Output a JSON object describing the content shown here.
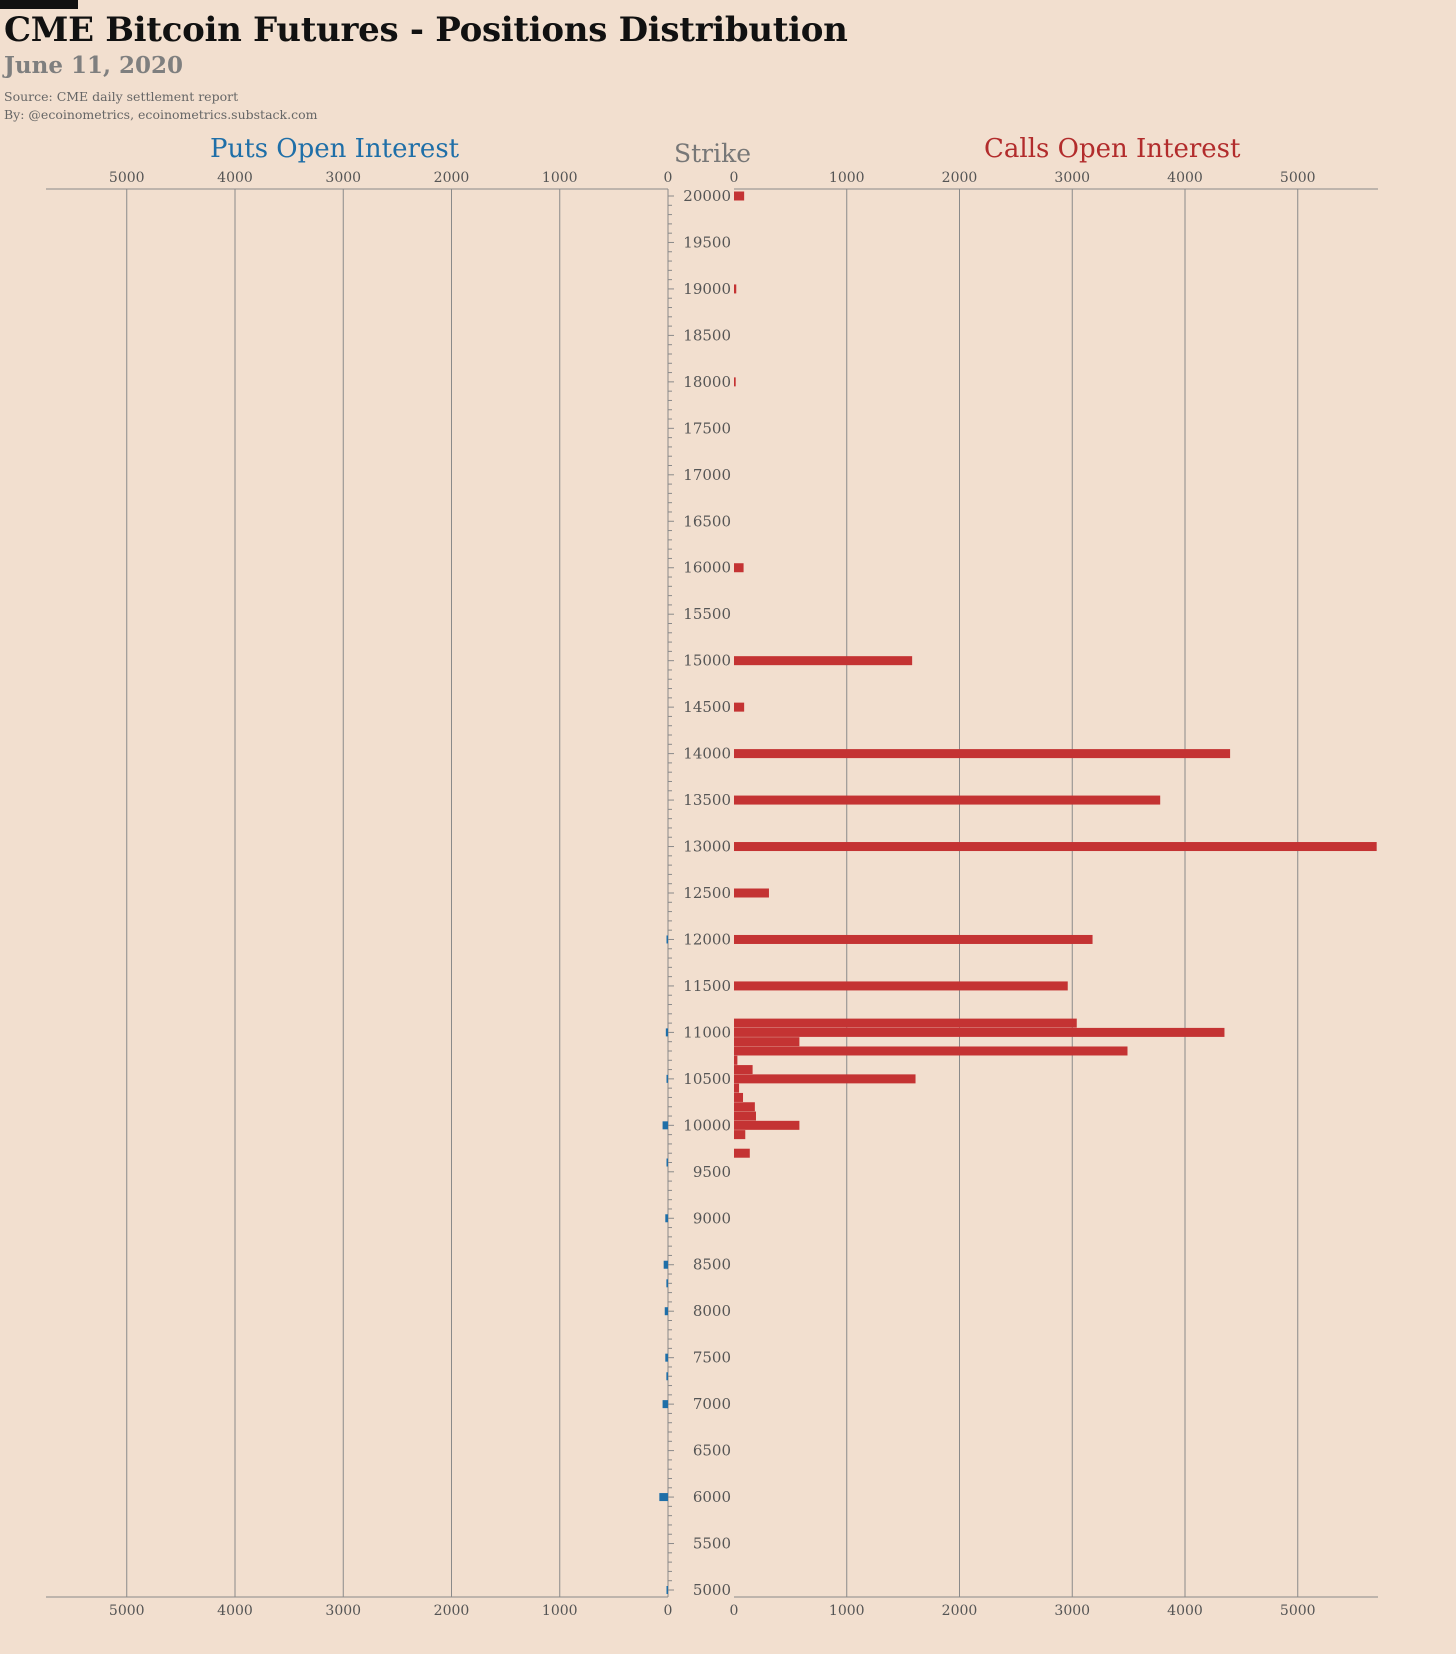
{
  "header": {
    "title": "CME Bitcoin Futures - Positions Distribution",
    "date": "June 11, 2020",
    "source": "Source: CME daily settlement report",
    "byline": "By: @ecoinometrics, ecoinometrics.substack.com"
  },
  "panels": {
    "puts_title": "Puts Open Interest",
    "calls_title": "Calls Open Interest",
    "strike_title": "Strike"
  },
  "colors": {
    "background": "#f2dfcf",
    "puts": "#1f6fa8",
    "calls": "#c43333",
    "grid": "#8a8a8a",
    "text": "#555555"
  },
  "chart_data": {
    "type": "bar",
    "orientation": "horizontal-butterfly",
    "strike_axis": {
      "min": 5000,
      "max": 20000,
      "label_step": 500,
      "minor_step": 100
    },
    "oi_axis": {
      "ticks": [
        0,
        1000,
        2000,
        3000,
        4000,
        5000
      ],
      "max": 5700
    },
    "grid": true,
    "calls": [
      {
        "strike": 20000,
        "oi": 90
      },
      {
        "strike": 19000,
        "oi": 20
      },
      {
        "strike": 18000,
        "oi": 15
      },
      {
        "strike": 16000,
        "oi": 85
      },
      {
        "strike": 15000,
        "oi": 1580
      },
      {
        "strike": 14500,
        "oi": 90
      },
      {
        "strike": 14000,
        "oi": 4400
      },
      {
        "strike": 13500,
        "oi": 3780
      },
      {
        "strike": 13000,
        "oi": 5700
      },
      {
        "strike": 12500,
        "oi": 310
      },
      {
        "strike": 12000,
        "oi": 3180
      },
      {
        "strike": 11500,
        "oi": 2960
      },
      {
        "strike": 11100,
        "oi": 3040
      },
      {
        "strike": 11000,
        "oi": 4350
      },
      {
        "strike": 10900,
        "oi": 580
      },
      {
        "strike": 10800,
        "oi": 3490
      },
      {
        "strike": 10700,
        "oi": 30
      },
      {
        "strike": 10600,
        "oi": 165
      },
      {
        "strike": 10500,
        "oi": 1610
      },
      {
        "strike": 10400,
        "oi": 45
      },
      {
        "strike": 10300,
        "oi": 80
      },
      {
        "strike": 10200,
        "oi": 185
      },
      {
        "strike": 10100,
        "oi": 195
      },
      {
        "strike": 10000,
        "oi": 580
      },
      {
        "strike": 9900,
        "oi": 100
      },
      {
        "strike": 9700,
        "oi": 140
      }
    ],
    "puts": [
      {
        "strike": 12000,
        "oi": 8
      },
      {
        "strike": 11000,
        "oi": 20
      },
      {
        "strike": 10500,
        "oi": 8
      },
      {
        "strike": 10000,
        "oi": 50
      },
      {
        "strike": 9600,
        "oi": 8
      },
      {
        "strike": 9000,
        "oi": 25
      },
      {
        "strike": 8500,
        "oi": 40
      },
      {
        "strike": 8300,
        "oi": 15
      },
      {
        "strike": 8000,
        "oi": 30
      },
      {
        "strike": 7500,
        "oi": 25
      },
      {
        "strike": 7300,
        "oi": 15
      },
      {
        "strike": 7000,
        "oi": 50
      },
      {
        "strike": 6000,
        "oi": 80
      },
      {
        "strike": 5000,
        "oi": 8
      }
    ]
  }
}
